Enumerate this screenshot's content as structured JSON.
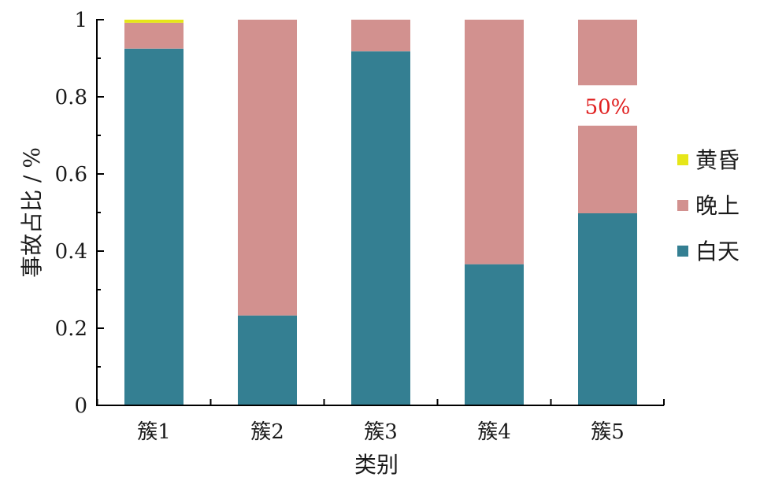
{
  "chart_data": {
    "type": "bar",
    "stacked": true,
    "categories": [
      "簇1",
      "簇2",
      "簇3",
      "簇4",
      "簇5"
    ],
    "series": [
      {
        "name": "白天",
        "color": "#347F92",
        "values": [
          0.925,
          0.233,
          0.918,
          0.366,
          0.498
        ]
      },
      {
        "name": "晚上",
        "color": "#D2918F",
        "values": [
          0.067,
          0.767,
          0.082,
          0.634,
          0.502
        ]
      },
      {
        "name": "黄昏",
        "color": "#E6E619",
        "values": [
          0.008,
          0.0,
          0.0,
          0.0,
          0.0
        ]
      }
    ],
    "xlabel": "类别",
    "ylabel": "事故占比 / %",
    "ylim": [
      0,
      1
    ],
    "yticks": [
      {
        "value": 0,
        "label": "0"
      },
      {
        "value": 0.2,
        "label": "0.2"
      },
      {
        "value": 0.4,
        "label": "0.4"
      },
      {
        "value": 0.6,
        "label": "0.6"
      },
      {
        "value": 0.8,
        "label": "0.8"
      },
      {
        "value": 1,
        "label": "1"
      }
    ],
    "legend_order": [
      "黄昏",
      "晚上",
      "白天"
    ],
    "legend_position": "right",
    "grid": false,
    "annotation": {
      "text": "50%",
      "category": "簇5",
      "color": "#E02020"
    }
  }
}
